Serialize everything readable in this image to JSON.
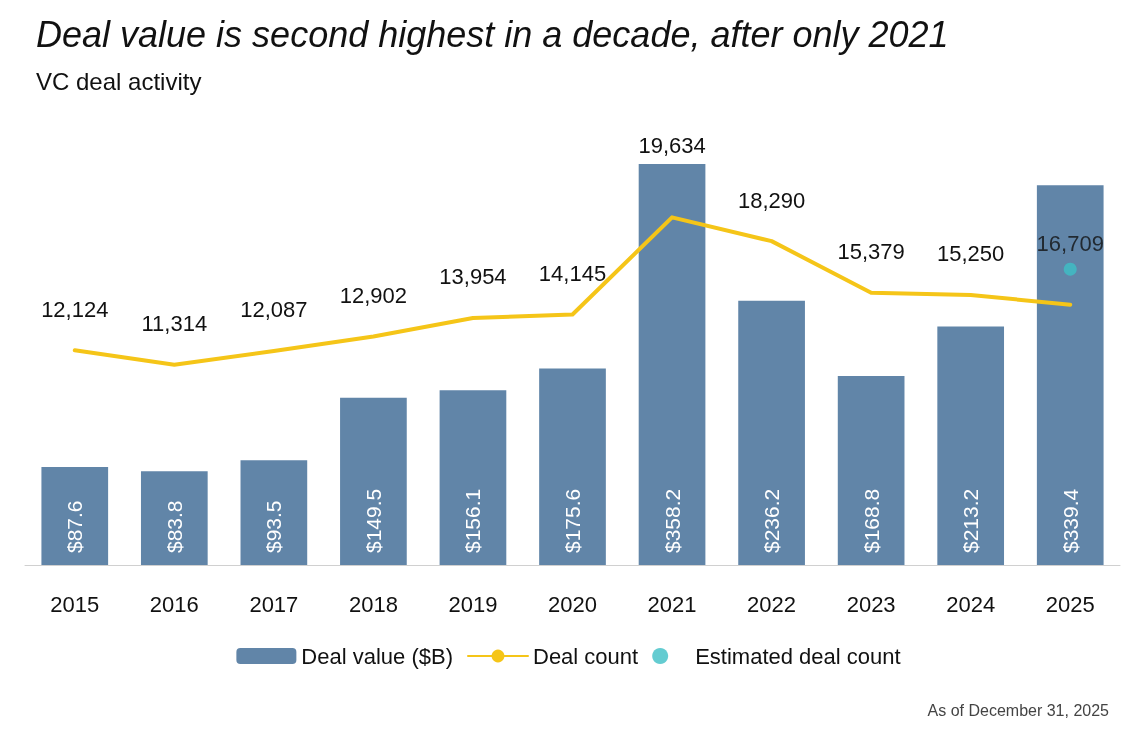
{
  "chart_data": {
    "type": "bar",
    "title": "Deal value is second highest in a decade, after only 2021",
    "subtitle": "VC deal activity",
    "categories": [
      "2015",
      "2016",
      "2017",
      "2018",
      "2019",
      "2020",
      "2021",
      "2022",
      "2023",
      "2024",
      "2025"
    ],
    "series": [
      {
        "name": "Deal value ($B)",
        "color": "#6185a8",
        "values": [
          87.6,
          83.8,
          93.5,
          149.5,
          156.1,
          175.6,
          358.2,
          236.2,
          168.8,
          213.2,
          339.4
        ],
        "value_labels": [
          "$87.6",
          "$83.8",
          "$93.5",
          "$149.5",
          "$156.1",
          "$175.6",
          "$358.2",
          "$236.2",
          "$168.8",
          "$213.2",
          "$339.4"
        ]
      },
      {
        "name": "Deal count",
        "type": "line",
        "axis": "y2",
        "color": "#f5c518",
        "marker": "none",
        "values": [
          12124,
          11314,
          12087,
          12902,
          13954,
          14145,
          19634,
          18290,
          15379,
          15250,
          14700
        ],
        "value_labels": [
          "12,124",
          "11,314",
          "12,087",
          "12,902",
          "13,954",
          "14,145",
          "19,634",
          "18,290",
          "15,379",
          "15,250",
          null
        ]
      },
      {
        "name": "Estimated deal count",
        "type": "scatter",
        "axis": "y2",
        "color": "#3dbfc6",
        "marker": "circle",
        "values": [
          null,
          null,
          null,
          null,
          null,
          null,
          null,
          null,
          null,
          null,
          16709
        ],
        "value_labels": [
          null,
          null,
          null,
          null,
          null,
          null,
          null,
          null,
          null,
          null,
          "16,709"
        ]
      }
    ],
    "legend": "bottom",
    "grid": false,
    "line_style": "solid",
    "annotations": [
      "As of December 31, 2025"
    ]
  }
}
